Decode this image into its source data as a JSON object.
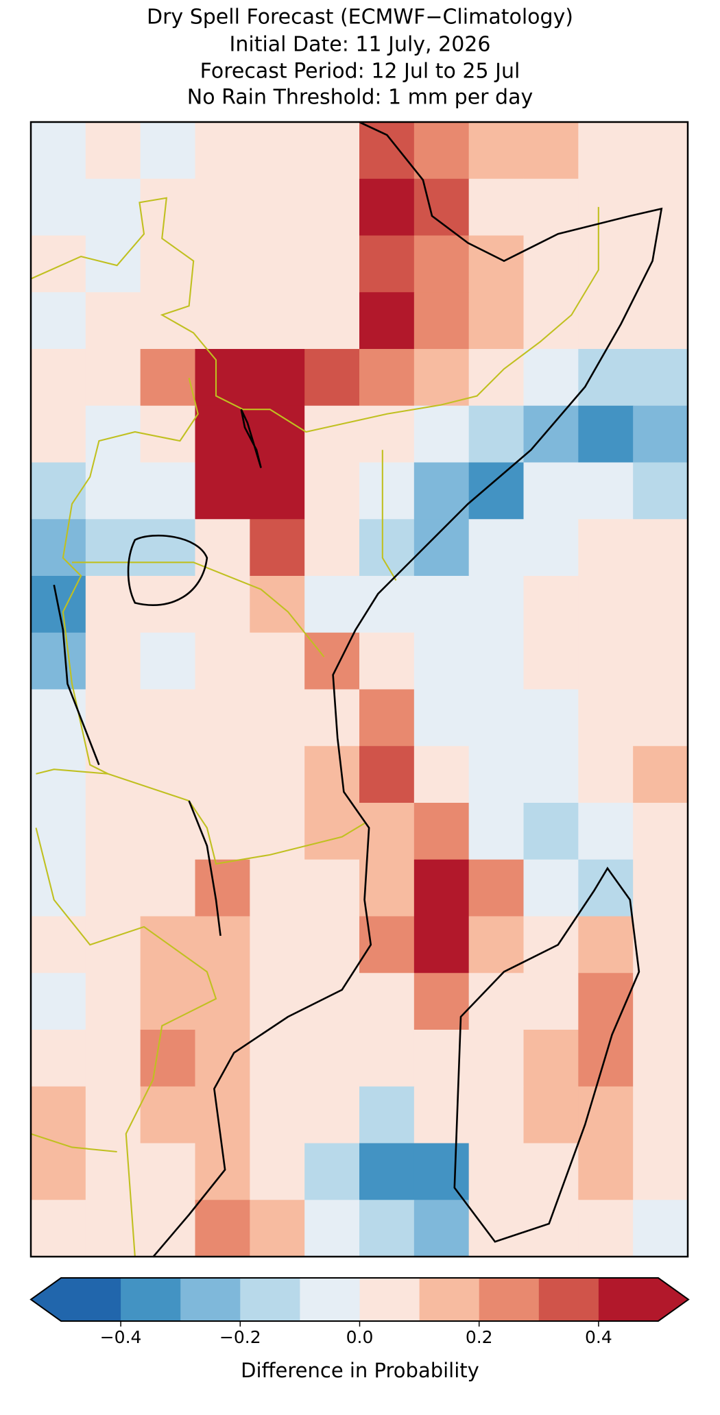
{
  "chart_data": {
    "type": "heatmap",
    "title": [
      "Dry Spell Forecast (ECMWF−Climatology)",
      "Initial Date: 11 July, 2026",
      "Forecast Period: 12 Jul to 25 Jul",
      "No Rain Threshold: 1 mm per day"
    ],
    "values": [
      [
        -0.05,
        0.05,
        -0.05,
        0.05,
        0.05,
        0.05,
        0.35,
        0.25,
        0.15,
        0.15,
        0.05,
        0.05
      ],
      [
        -0.05,
        -0.05,
        0.05,
        0.05,
        0.05,
        0.05,
        0.45,
        0.35,
        0.05,
        0.05,
        0.05,
        0.05
      ],
      [
        0.05,
        -0.05,
        0.05,
        0.05,
        0.05,
        0.05,
        0.35,
        0.25,
        0.15,
        0.05,
        0.05,
        0.05
      ],
      [
        -0.05,
        0.05,
        0.05,
        0.05,
        0.05,
        0.05,
        0.45,
        0.25,
        0.15,
        0.05,
        0.05,
        0.05
      ],
      [
        0.05,
        0.05,
        0.25,
        0.45,
        0.45,
        0.35,
        0.25,
        0.15,
        0.05,
        -0.05,
        -0.15,
        -0.15
      ],
      [
        0.05,
        -0.05,
        0.05,
        0.45,
        0.45,
        0.05,
        0.05,
        -0.05,
        -0.15,
        -0.25,
        -0.35,
        -0.25
      ],
      [
        -0.15,
        -0.05,
        -0.05,
        0.45,
        0.45,
        0.05,
        -0.05,
        -0.25,
        -0.35,
        -0.05,
        -0.05,
        -0.15
      ],
      [
        -0.25,
        -0.15,
        -0.15,
        0.05,
        0.35,
        0.05,
        -0.15,
        -0.25,
        -0.05,
        -0.05,
        0.05,
        0.05
      ],
      [
        -0.35,
        0.05,
        0.05,
        0.05,
        0.15,
        -0.05,
        -0.05,
        -0.05,
        -0.05,
        0.05,
        0.05,
        0.05
      ],
      [
        -0.25,
        0.05,
        -0.05,
        0.05,
        0.05,
        0.25,
        0.05,
        -0.05,
        -0.05,
        0.05,
        0.05,
        0.05
      ],
      [
        -0.05,
        0.05,
        0.05,
        0.05,
        0.05,
        0.05,
        0.25,
        -0.05,
        -0.05,
        -0.05,
        0.05,
        0.05
      ],
      [
        -0.05,
        0.05,
        0.05,
        0.05,
        0.05,
        0.15,
        0.35,
        0.05,
        -0.05,
        -0.05,
        0.05,
        0.15
      ],
      [
        -0.05,
        0.05,
        0.05,
        0.05,
        0.05,
        0.15,
        0.15,
        0.25,
        -0.05,
        -0.15,
        -0.05,
        0.05
      ],
      [
        -0.05,
        0.05,
        0.05,
        0.25,
        0.05,
        0.05,
        0.15,
        0.45,
        0.25,
        -0.05,
        -0.15,
        0.05
      ],
      [
        0.05,
        0.05,
        0.15,
        0.15,
        0.05,
        0.05,
        0.25,
        0.45,
        0.15,
        0.05,
        0.15,
        0.05
      ],
      [
        -0.05,
        0.05,
        0.15,
        0.15,
        0.05,
        0.05,
        0.05,
        0.25,
        0.05,
        0.05,
        0.25,
        0.05
      ],
      [
        0.05,
        0.05,
        0.25,
        0.15,
        0.05,
        0.05,
        0.05,
        0.05,
        0.05,
        0.15,
        0.25,
        0.05
      ],
      [
        0.15,
        0.05,
        0.15,
        0.15,
        0.05,
        0.05,
        -0.15,
        0.05,
        0.05,
        0.15,
        0.15,
        0.05
      ],
      [
        0.15,
        0.05,
        0.05,
        0.15,
        0.05,
        -0.15,
        -0.35,
        -0.35,
        0.05,
        0.05,
        0.15,
        0.05
      ],
      [
        0.05,
        0.05,
        0.05,
        0.25,
        0.15,
        -0.05,
        -0.15,
        -0.25,
        0.05,
        0.05,
        0.05,
        -0.05
      ]
    ],
    "colorbar": {
      "levels": [
        -0.5,
        -0.4,
        -0.3,
        -0.2,
        -0.1,
        0,
        0.1,
        0.2,
        0.3,
        0.4,
        0.5
      ],
      "colors": [
        "#2166ac",
        "#4393c3",
        "#7fb8da",
        "#b8d9ea",
        "#e6eef5",
        "#fbe5dc",
        "#f7bba0",
        "#e8896f",
        "#d0544a",
        "#b2182b"
      ],
      "extend": "both",
      "ticks": [
        {
          "value": -0.4,
          "label": "−0.4"
        },
        {
          "value": -0.2,
          "label": "−0.2"
        },
        {
          "value": 0,
          "label": "0.0"
        },
        0.2,
        0.4
      ],
      "label": "Difference in Probability"
    }
  }
}
